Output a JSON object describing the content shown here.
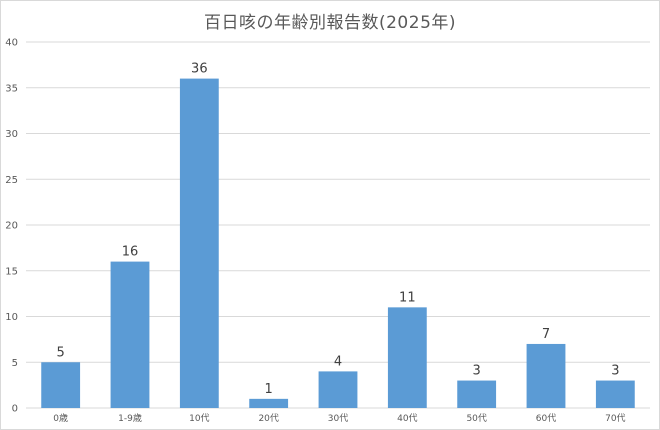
{
  "chart_data": {
    "type": "bar",
    "title": "百日咳の年齢別報告数(2025年)",
    "xlabel": "",
    "ylabel": "",
    "categories": [
      "0歳",
      "1-9歳",
      "10代",
      "20代",
      "30代",
      "40代",
      "50代",
      "60代",
      "70代"
    ],
    "series": [
      {
        "values": [
          5,
          16,
          36,
          1,
          4,
          11,
          3,
          7,
          3
        ]
      }
    ],
    "ylim": [
      0,
      40
    ],
    "yticks": [
      0,
      5,
      10,
      15,
      20,
      25,
      30,
      35,
      40
    ],
    "data_labels": true,
    "grid": true,
    "legend": "none",
    "bar_color": "#5b9bd5",
    "grid_color": "#d9d9d9"
  }
}
